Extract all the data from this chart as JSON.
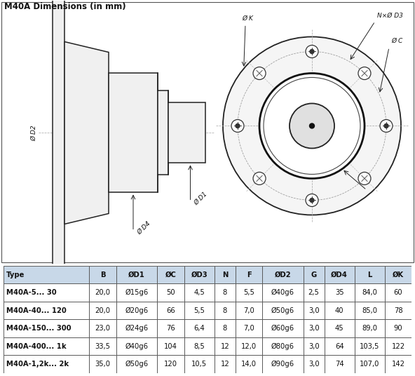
{
  "title": "M40A Dimensions (in mm)",
  "table_headers": [
    "Type",
    "B",
    "ØD1",
    "ØC",
    "ØD3",
    "N",
    "F",
    "ØD2",
    "G",
    "ØD4",
    "L",
    "ØK"
  ],
  "table_rows": [
    [
      "M40A-5... 30",
      "20,0",
      "Ø15g6",
      "50",
      "4,5",
      "8",
      "5,5",
      "Ø40g6",
      "2,5",
      "35",
      "84,0",
      "60"
    ],
    [
      "M40A-40... 120",
      "20,0",
      "Ø20g6",
      "66",
      "5,5",
      "8",
      "7,0",
      "Ø50g6",
      "3,0",
      "40",
      "85,0",
      "78"
    ],
    [
      "M40A-150... 300",
      "23,0",
      "Ø24g6",
      "76",
      "6,4",
      "8",
      "7,0",
      "Ø60g6",
      "3,0",
      "45",
      "89,0",
      "90"
    ],
    [
      "M40A-400... 1k",
      "33,5",
      "Ø40g6",
      "104",
      "8,5",
      "12",
      "12,0",
      "Ø80g6",
      "3,0",
      "64",
      "103,5",
      "122"
    ],
    [
      "M40A-1,2k... 2k",
      "35,0",
      "Ø50g6",
      "120",
      "10,5",
      "12",
      "14,0",
      "Ø90g6",
      "3,0",
      "74",
      "107,0",
      "142"
    ]
  ],
  "header_bg": "#c8d8e8",
  "col_widths": [
    1.85,
    0.58,
    0.88,
    0.58,
    0.65,
    0.45,
    0.58,
    0.88,
    0.45,
    0.65,
    0.65,
    0.58
  ]
}
